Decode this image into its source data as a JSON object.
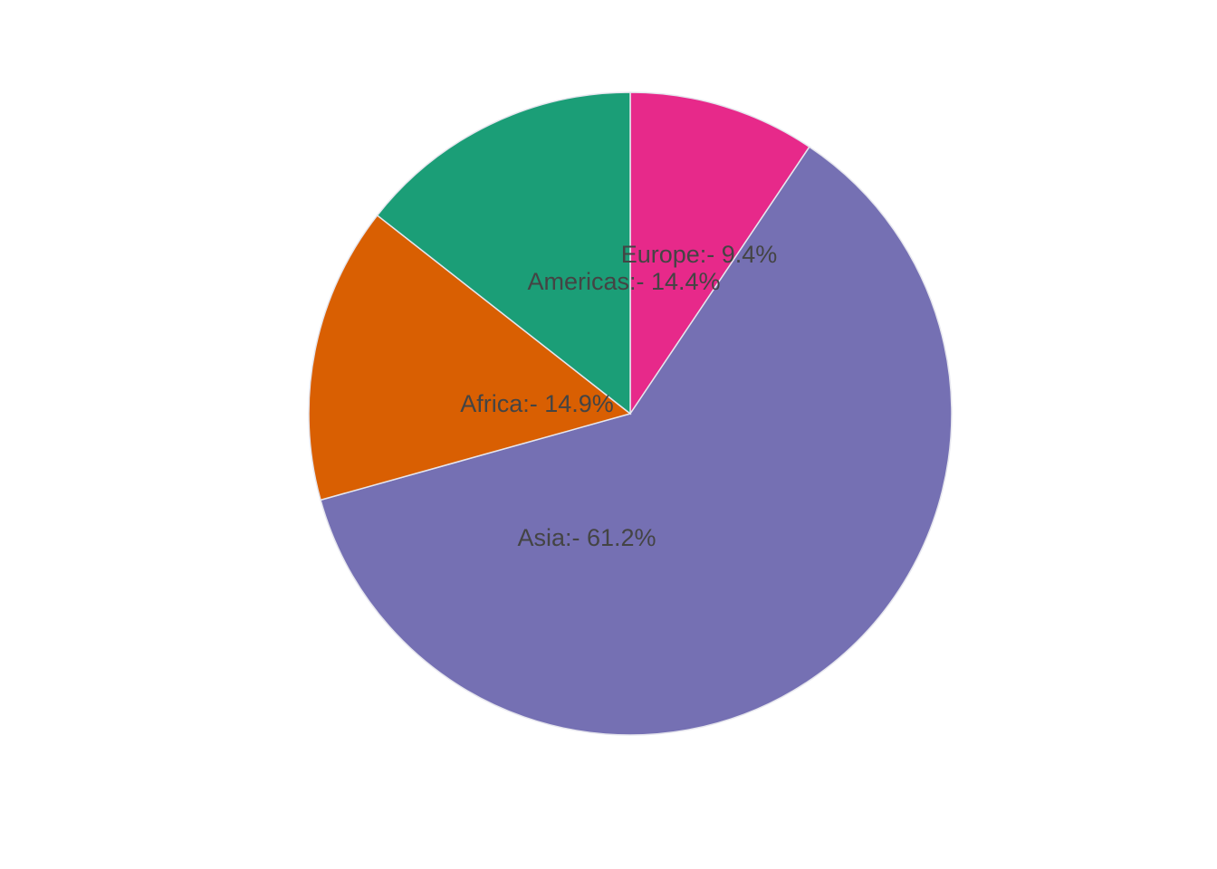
{
  "chart_data": {
    "type": "pie",
    "values": [
      9.4,
      61.2,
      14.9,
      14.4
    ],
    "value_labels": [
      "Europe:- 9.4%",
      "Asia:- 61.2%",
      "Africa:- 14.9%",
      "Americas:- 14.4%"
    ],
    "colors": [
      "#e7298a",
      "#7570b3",
      "#d95f02",
      "#1b9e77"
    ]
  }
}
